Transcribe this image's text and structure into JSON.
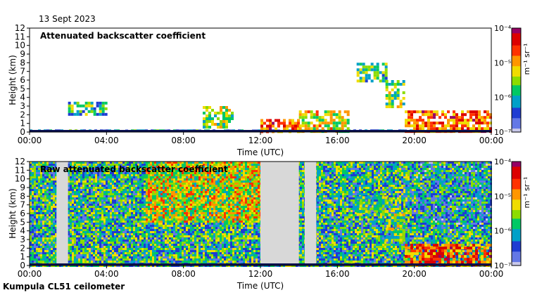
{
  "date_label": "13 Sept 2023",
  "footer_label": "Kumpula CL51 ceilometer",
  "colors": {
    "colormap": [
      "#c8c8ea",
      "#6478e6",
      "#1e3cd2",
      "#00a0c8",
      "#00c864",
      "#8cdc00",
      "#f0dc00",
      "#ff9600",
      "#ff3200",
      "#dc0000",
      "#960064"
    ],
    "gap": "#d8d8d8",
    "ground": "#0a1050"
  },
  "chart_data": [
    {
      "type": "heatmap",
      "title": "Attenuated backscatter coefficient",
      "xlabel": "Time (UTC)",
      "ylabel": "Height (km)",
      "x_ticks": [
        "00:00",
        "04:00",
        "08:00",
        "12:00",
        "16:00",
        "20:00",
        "00:00"
      ],
      "xlim_hours": [
        0,
        24
      ],
      "y_ticks": [
        0,
        1,
        2,
        3,
        4,
        5,
        6,
        7,
        8,
        9,
        10,
        11,
        12
      ],
      "ylim_km": [
        0,
        12
      ],
      "colorbar": {
        "unit": "m⁻¹ sr⁻¹",
        "tick_labels": [
          "10⁻⁴",
          "10⁻⁵",
          "10⁻⁶",
          "10⁻⁷"
        ],
        "range_log10": [
          -7,
          -4
        ]
      },
      "features": [
        {
          "name": "near-surface layer",
          "t_start": 0,
          "t_end": 24,
          "h_bottom": 0,
          "h_top": 0.3,
          "log10": -6.1
        },
        {
          "name": "low cloud",
          "t_start": 2.0,
          "t_end": 4.0,
          "h_bottom": 2.0,
          "h_top": 3.5,
          "log10": -5.8
        },
        {
          "name": "thin cloud",
          "t_start": 9.0,
          "t_end": 10.5,
          "h_bottom": 0.5,
          "h_top": 3.0,
          "log10": -5.5
        },
        {
          "name": "convective cloud",
          "t_start": 12.0,
          "t_end": 14.0,
          "h_bottom": 0,
          "h_top": 1.5,
          "log10": -4.7
        },
        {
          "name": "growing boundary layer",
          "t_start": 14.0,
          "t_end": 16.5,
          "h_bottom": 0,
          "h_top": 2.5,
          "log10": -5.3
        },
        {
          "name": "elevated aerosol layer",
          "t_start": 17.0,
          "t_end": 18.5,
          "h_bottom": 6.0,
          "h_top": 8.0,
          "log10": -5.7
        },
        {
          "name": "descending layer",
          "t_start": 18.5,
          "t_end": 19.5,
          "h_bottom": 3.0,
          "h_top": 6.0,
          "log10": -5.6
        },
        {
          "name": "evening layer",
          "t_start": 19.5,
          "t_end": 24,
          "h_bottom": 0,
          "h_top": 2.5,
          "log10": -4.7
        }
      ]
    },
    {
      "type": "heatmap",
      "title": "Raw attenuated backscatter coefficient",
      "xlabel": "Time (UTC)",
      "ylabel": "Height (km)",
      "x_ticks": [
        "00:00",
        "04:00",
        "08:00",
        "12:00",
        "16:00",
        "20:00",
        "00:00"
      ],
      "xlim_hours": [
        0,
        24
      ],
      "y_ticks": [
        0,
        1,
        2,
        3,
        4,
        5,
        6,
        7,
        8,
        9,
        10,
        11,
        12
      ],
      "ylim_km": [
        0,
        12
      ],
      "colorbar": {
        "unit": "m⁻¹ sr⁻¹",
        "tick_labels": [
          "10⁻⁴",
          "10⁻⁵",
          "10⁻⁶",
          "10⁻⁷"
        ],
        "range_log10": [
          -7,
          -4
        ]
      },
      "gaps": [
        {
          "t_start": 1.4,
          "t_end": 2.0
        },
        {
          "t_start": 12.0,
          "t_end": 14.0
        },
        {
          "t_start": 14.3,
          "t_end": 14.9
        }
      ],
      "features": [
        {
          "name": "noisy background",
          "t_start": 0,
          "t_end": 24,
          "h_bottom": 0,
          "h_top": 12,
          "log10": -5.9
        },
        {
          "name": "elevated aerosol layer",
          "t_start": 17.0,
          "t_end": 18.5,
          "h_bottom": 6.0,
          "h_top": 8.0,
          "log10": -5.7
        },
        {
          "name": "descending layer",
          "t_start": 18.5,
          "t_end": 19.5,
          "h_bottom": 3.0,
          "h_top": 6.0,
          "log10": -5.6
        },
        {
          "name": "evening layer",
          "t_start": 19.5,
          "t_end": 24,
          "h_bottom": 0,
          "h_top": 2.5,
          "log10": -4.7
        }
      ]
    }
  ]
}
